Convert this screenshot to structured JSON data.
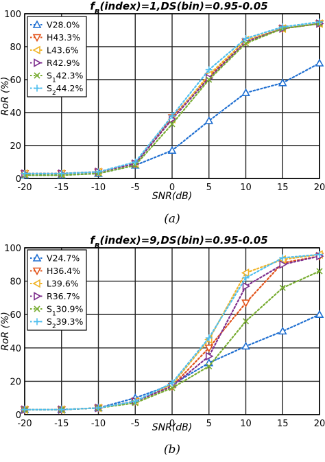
{
  "chart_data": [
    {
      "type": "line",
      "title_main": "f",
      "title_sub": "B",
      "title_rest": "(index)=1,DS(bin)=0.95-0.05",
      "xlabel": "SNR(dB)",
      "ylabel": "RoR (%)",
      "caption": "(a)",
      "xlim": [
        -20,
        20
      ],
      "ylim": [
        0,
        100
      ],
      "xticks": [
        "-20",
        "-15",
        "-10",
        "-5",
        "0",
        "5",
        "10",
        "15",
        "20"
      ],
      "yticks": [
        "0",
        "20",
        "40",
        "60",
        "80",
        "100"
      ],
      "grid": true,
      "legend_position": "top-left",
      "x": [
        -20,
        -15,
        -10,
        -5,
        0,
        5,
        10,
        15,
        20
      ],
      "series": [
        {
          "name": "V",
          "sub": "",
          "pct": "28.0%",
          "marker": "triangle-up",
          "color": "#1f6fd1",
          "values": [
            2,
            2,
            3,
            8,
            17,
            35,
            52,
            58,
            70
          ]
        },
        {
          "name": "H",
          "sub": "",
          "pct": "43.3%",
          "marker": "triangle-down",
          "color": "#e2531a",
          "values": [
            3,
            3,
            4,
            9,
            37,
            62,
            83,
            91,
            94
          ]
        },
        {
          "name": "L",
          "sub": "",
          "pct": "43.6%",
          "marker": "triangle-left",
          "color": "#f0b429",
          "values": [
            3,
            3,
            4,
            9,
            36,
            63,
            84,
            91,
            94
          ]
        },
        {
          "name": "R",
          "sub": "",
          "pct": "42.9%",
          "marker": "triangle-right",
          "color": "#7e2f8e",
          "values": [
            3,
            3,
            4,
            9,
            36,
            61,
            83,
            91,
            94
          ]
        },
        {
          "name": "S",
          "sub": "1",
          "pct": "42.3%",
          "marker": "x",
          "color": "#77ac30",
          "values": [
            2,
            2,
            3,
            8,
            33,
            60,
            82,
            91,
            94
          ]
        },
        {
          "name": "S",
          "sub": "2",
          "pct": "44.2%",
          "marker": "plus",
          "color": "#4dbeee",
          "values": [
            3,
            3,
            4,
            10,
            38,
            66,
            85,
            92,
            95
          ]
        }
      ]
    },
    {
      "type": "line",
      "title_main": "f",
      "title_sub": "B",
      "title_rest": "(index)=9,DS(bin)=0.95-0.05",
      "xlabel": "SNR(dB)",
      "ylabel": "RoR (%)",
      "caption": "(b)",
      "xlim": [
        -20,
        20
      ],
      "ylim": [
        0,
        100
      ],
      "xticks": [
        "-20",
        "-15",
        "-10",
        "-5",
        "0",
        "5",
        "10",
        "15",
        "20"
      ],
      "yticks": [
        "0",
        "20",
        "40",
        "60",
        "80",
        "100"
      ],
      "grid": true,
      "legend_position": "top-left",
      "x": [
        -20,
        -15,
        -10,
        -5,
        0,
        5,
        10,
        15,
        20
      ],
      "series": [
        {
          "name": "V",
          "sub": "",
          "pct": "24.7%",
          "marker": "triangle-up",
          "color": "#1f6fd1",
          "values": [
            3,
            3,
            4,
            10,
            18,
            31,
            41,
            50,
            60
          ]
        },
        {
          "name": "H",
          "sub": "",
          "pct": "36.4%",
          "marker": "triangle-down",
          "color": "#e2531a",
          "values": [
            3,
            3,
            4,
            8,
            17,
            40,
            67,
            91,
            95
          ]
        },
        {
          "name": "L",
          "sub": "",
          "pct": "39.6%",
          "marker": "triangle-left",
          "color": "#f0b429",
          "values": [
            3,
            3,
            4,
            8,
            18,
            45,
            85,
            93,
            96
          ]
        },
        {
          "name": "R",
          "sub": "",
          "pct": "36.7%",
          "marker": "triangle-right",
          "color": "#7e2f8e",
          "values": [
            3,
            3,
            4,
            8,
            17,
            35,
            77,
            90,
            95
          ]
        },
        {
          "name": "S",
          "sub": "1",
          "pct": "30.9%",
          "marker": "x",
          "color": "#77ac30",
          "values": [
            3,
            3,
            4,
            7,
            16,
            29,
            56,
            76,
            86
          ]
        },
        {
          "name": "S",
          "sub": "2",
          "pct": "39.3%",
          "marker": "plus",
          "color": "#4dbeee",
          "values": [
            3,
            3,
            4,
            8,
            19,
            46,
            82,
            94,
            96
          ]
        }
      ]
    }
  ]
}
